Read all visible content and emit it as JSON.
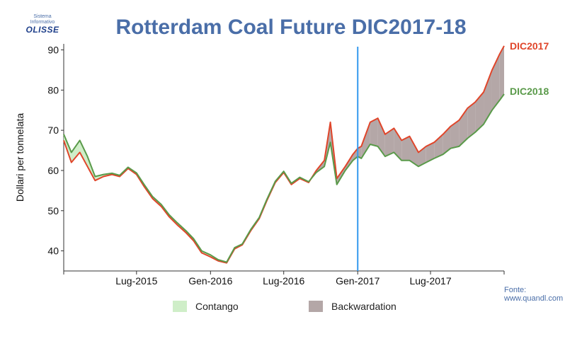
{
  "logo": {
    "line1": "Sistema",
    "line2": "Informativo",
    "name": "OLISSE"
  },
  "source": {
    "line1": "Fonte:",
    "line2": "www.quandl.com"
  },
  "colors": {
    "dic2017": "#e0452a",
    "dic2018": "#5a9a4a",
    "contango": "#cfeec8",
    "backwardation": "#b4a7a7",
    "vline": "#3399ee",
    "title": "#4a6ea8"
  },
  "chart_data": {
    "type": "area",
    "title": "Rotterdam Coal Future DIC2017-18",
    "xlabel": "",
    "ylabel": "Dollari per tonnelata",
    "ylim": [
      35,
      91.5
    ],
    "yticks": [
      40,
      50,
      60,
      70,
      80,
      90
    ],
    "xlim": [
      "2015-01-01",
      "2017-12-31"
    ],
    "xticks": [
      {
        "date": "2015-07-01",
        "label": "Lug-2015"
      },
      {
        "date": "2016-01-01",
        "label": "Gen-2016"
      },
      {
        "date": "2016-07-01",
        "label": "Lug-2016"
      },
      {
        "date": "2017-01-01",
        "label": "Gen-2017"
      },
      {
        "date": "2017-07-01",
        "label": "Lug-2017"
      }
    ],
    "vline": "2017-01-01",
    "legend": [
      {
        "name": "Contango",
        "color": "#cfeec8"
      },
      {
        "name": "Backwardation",
        "color": "#b4a7a7"
      }
    ],
    "x": [
      "2015-01-01",
      "2015-01-20",
      "2015-02-10",
      "2015-03-01",
      "2015-03-20",
      "2015-04-10",
      "2015-05-01",
      "2015-05-20",
      "2015-06-10",
      "2015-07-01",
      "2015-07-20",
      "2015-08-10",
      "2015-09-01",
      "2015-09-20",
      "2015-10-10",
      "2015-11-01",
      "2015-11-20",
      "2015-12-10",
      "2016-01-01",
      "2016-01-20",
      "2016-02-10",
      "2016-03-01",
      "2016-03-20",
      "2016-04-10",
      "2016-05-01",
      "2016-05-20",
      "2016-06-10",
      "2016-07-01",
      "2016-07-20",
      "2016-08-10",
      "2016-09-01",
      "2016-09-20",
      "2016-10-10",
      "2016-10-25",
      "2016-11-10",
      "2016-12-01",
      "2016-12-20",
      "2017-01-01",
      "2017-01-10",
      "2017-02-01",
      "2017-02-20",
      "2017-03-10",
      "2017-04-01",
      "2017-04-20",
      "2017-05-10",
      "2017-06-01",
      "2017-06-20",
      "2017-07-10",
      "2017-08-01",
      "2017-08-20",
      "2017-09-10",
      "2017-10-01",
      "2017-10-20",
      "2017-11-10",
      "2017-12-01",
      "2017-12-20",
      "2017-12-31"
    ],
    "series": [
      {
        "name": "DIC2017",
        "color": "#e0452a",
        "values": [
          67.5,
          62.0,
          64.5,
          61.0,
          57.5,
          58.5,
          59.0,
          58.5,
          60.5,
          59.0,
          56.0,
          53.0,
          51.0,
          48.5,
          46.5,
          44.5,
          42.5,
          39.5,
          38.5,
          37.5,
          37.0,
          40.5,
          41.5,
          45.0,
          48.0,
          52.5,
          57.0,
          59.5,
          56.5,
          58.0,
          57.0,
          60.0,
          62.5,
          72.0,
          58.0,
          61.0,
          64.0,
          65.5,
          66.0,
          72.0,
          73.0,
          69.0,
          70.5,
          67.5,
          68.5,
          64.5,
          66.0,
          67.0,
          69.0,
          71.0,
          72.5,
          75.5,
          77.0,
          79.5,
          85.0,
          89.0,
          91.0
        ]
      },
      {
        "name": "DIC2018",
        "color": "#5a9a4a",
        "values": [
          69.0,
          64.5,
          67.5,
          63.5,
          58.5,
          59.0,
          59.3,
          58.8,
          60.8,
          59.4,
          56.5,
          53.5,
          51.5,
          49.0,
          47.0,
          45.0,
          43.0,
          40.0,
          39.0,
          37.8,
          37.2,
          40.8,
          41.7,
          45.3,
          48.3,
          52.8,
          57.3,
          59.8,
          56.8,
          58.3,
          57.2,
          59.5,
          61.0,
          67.0,
          56.5,
          60.0,
          62.5,
          63.5,
          63.0,
          66.5,
          66.0,
          63.5,
          64.5,
          62.5,
          62.5,
          61.0,
          62.0,
          63.0,
          64.0,
          65.5,
          66.0,
          68.0,
          69.5,
          71.5,
          75.0,
          77.5,
          79.0
        ]
      }
    ],
    "series_labels": [
      {
        "name": "DIC2017",
        "color": "#e0452a"
      },
      {
        "name": "DIC2018",
        "color": "#5a9a4a"
      }
    ]
  }
}
